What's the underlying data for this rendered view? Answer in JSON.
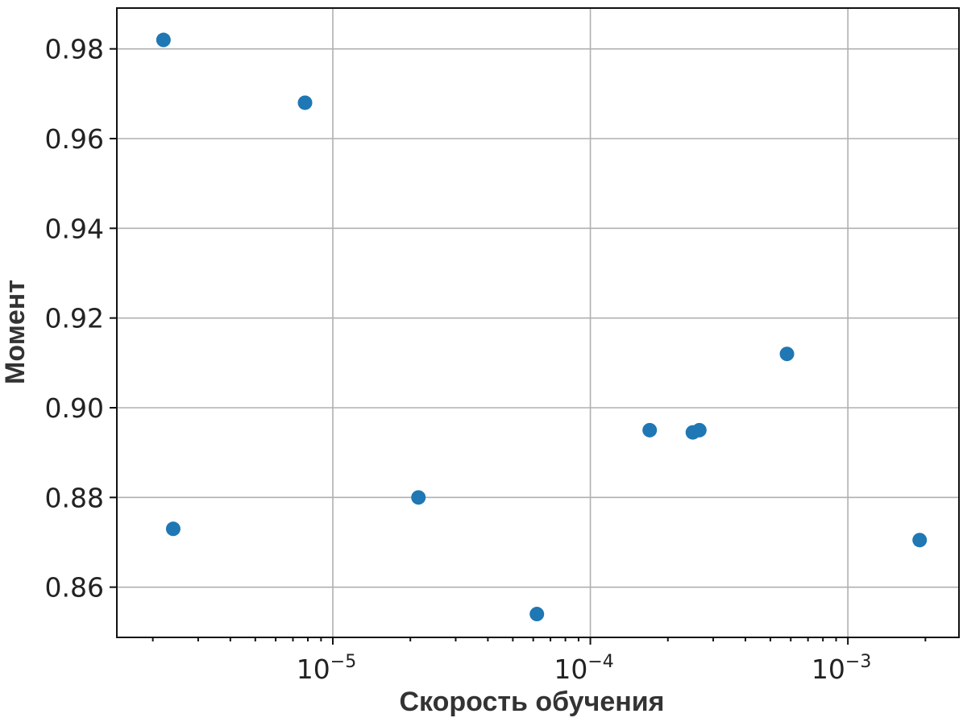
{
  "chart_data": {
    "type": "scatter",
    "xlabel": "Скорость обучения",
    "ylabel": "Момент",
    "xscale": "log",
    "xlim": [
      1.45e-06,
      0.0027
    ],
    "ylim": [
      0.8488,
      0.9891
    ],
    "grid": true,
    "x_ticks": [
      {
        "base": "10",
        "exp": "−5",
        "value": 1e-05
      },
      {
        "base": "10",
        "exp": "−4",
        "value": 0.0001
      },
      {
        "base": "10",
        "exp": "−3",
        "value": 0.001
      }
    ],
    "y_ticks": [
      "0.86",
      "0.88",
      "0.90",
      "0.92",
      "0.94",
      "0.96",
      "0.98"
    ],
    "series": [
      {
        "color": "#1f77b4",
        "points": [
          {
            "x": 2.2e-06,
            "y": 0.982
          },
          {
            "x": 2.4e-06,
            "y": 0.873
          },
          {
            "x": 7.8e-06,
            "y": 0.968
          },
          {
            "x": 2.15e-05,
            "y": 0.88
          },
          {
            "x": 6.2e-05,
            "y": 0.854
          },
          {
            "x": 0.00017,
            "y": 0.895
          },
          {
            "x": 0.00025,
            "y": 0.8945
          },
          {
            "x": 0.000265,
            "y": 0.895
          },
          {
            "x": 0.00058,
            "y": 0.912
          },
          {
            "x": 0.0019,
            "y": 0.8705
          }
        ]
      }
    ]
  }
}
